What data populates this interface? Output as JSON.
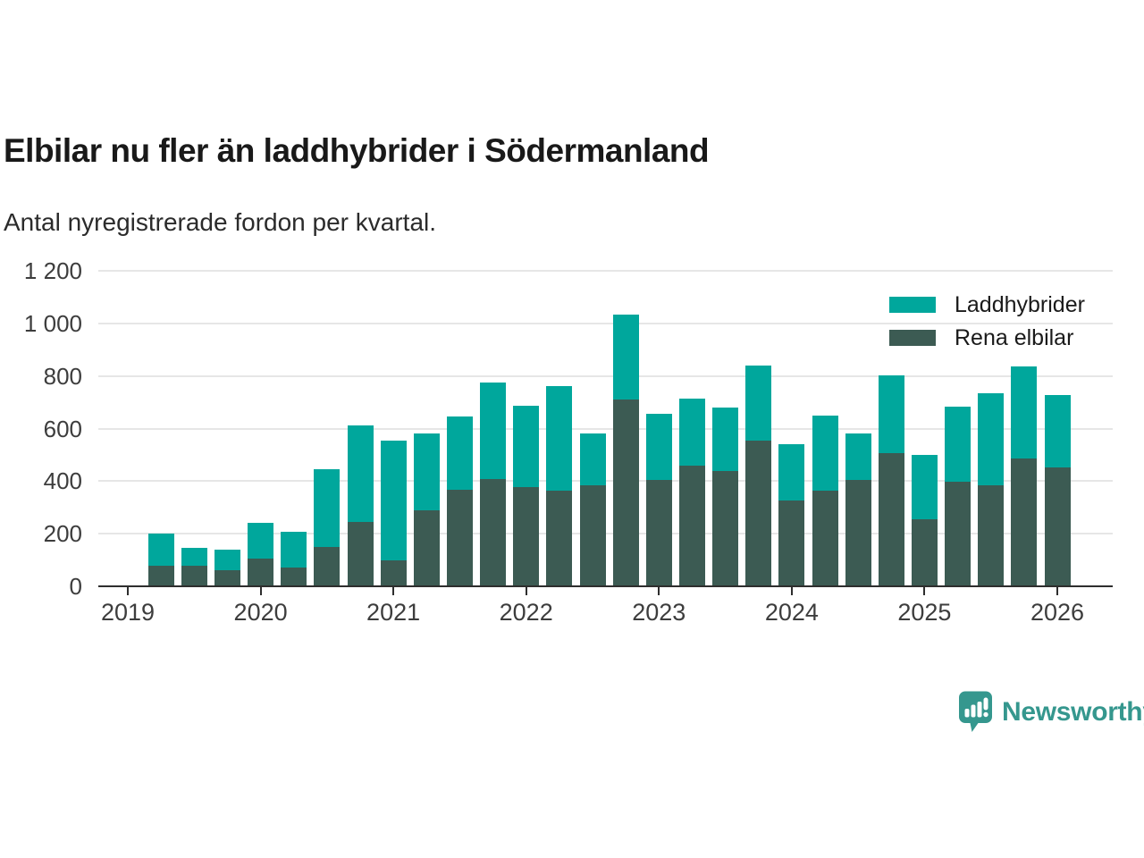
{
  "chart_data": {
    "type": "bar",
    "stacked": true,
    "title": "Elbilar nu fler än laddhybrider i Södermanland",
    "subtitle": "Antal nyregistrerade fordon per kvartal.",
    "quarters": [
      "2019-Q2",
      "2019-Q3",
      "2019-Q4",
      "2020-Q1",
      "2020-Q2",
      "2020-Q3",
      "2020-Q4",
      "2021-Q1",
      "2021-Q2",
      "2021-Q3",
      "2021-Q4",
      "2022-Q1",
      "2022-Q2",
      "2022-Q3",
      "2022-Q4",
      "2023-Q1",
      "2023-Q2",
      "2023-Q3",
      "2023-Q4",
      "2024-Q1",
      "2024-Q2",
      "2024-Q3",
      "2024-Q4",
      "2025-Q1",
      "2025-Q2",
      "2025-Q3",
      "2025-Q4",
      "2026-Q1"
    ],
    "series": [
      {
        "name": "Laddhybrider",
        "color": "#00A79C",
        "values": [
          123,
          70,
          80,
          136,
          135,
          296,
          368,
          453,
          293,
          277,
          367,
          308,
          399,
          199,
          324,
          251,
          255,
          240,
          285,
          215,
          285,
          178,
          296,
          245,
          288,
          350,
          351,
          277
        ]
      },
      {
        "name": "Rena elbilar",
        "color": "#3C5B53",
        "values": [
          78,
          77,
          60,
          106,
          72,
          150,
          245,
          100,
          288,
          368,
          409,
          378,
          362,
          384,
          711,
          405,
          460,
          440,
          555,
          327,
          365,
          405,
          507,
          255,
          396,
          385,
          487,
          452
        ]
      }
    ],
    "x_tick_labels": [
      "2019",
      "2020",
      "2021",
      "2022",
      "2023",
      "2024",
      "2025",
      "2026"
    ],
    "y_ticks": [
      {
        "value": 0,
        "label": "0"
      },
      {
        "value": 200,
        "label": "200"
      },
      {
        "value": 400,
        "label": "400"
      },
      {
        "value": 600,
        "label": "600"
      },
      {
        "value": 800,
        "label": "800"
      },
      {
        "value": 1000,
        "label": "1 000"
      },
      {
        "value": 1200,
        "label": "1 200"
      }
    ],
    "ylim": [
      0,
      1200
    ],
    "grid": "horizontal",
    "legend_position": "top-right",
    "colors": {
      "axis": "#2E2E2E",
      "gridline": "#E6E6E6",
      "tick_text": "#3D3D3D"
    }
  },
  "footer": {
    "brand": "Newsworthy",
    "brand_color": "#35978E",
    "logo_icon": "speech-bubble-bar-chart-icon"
  }
}
